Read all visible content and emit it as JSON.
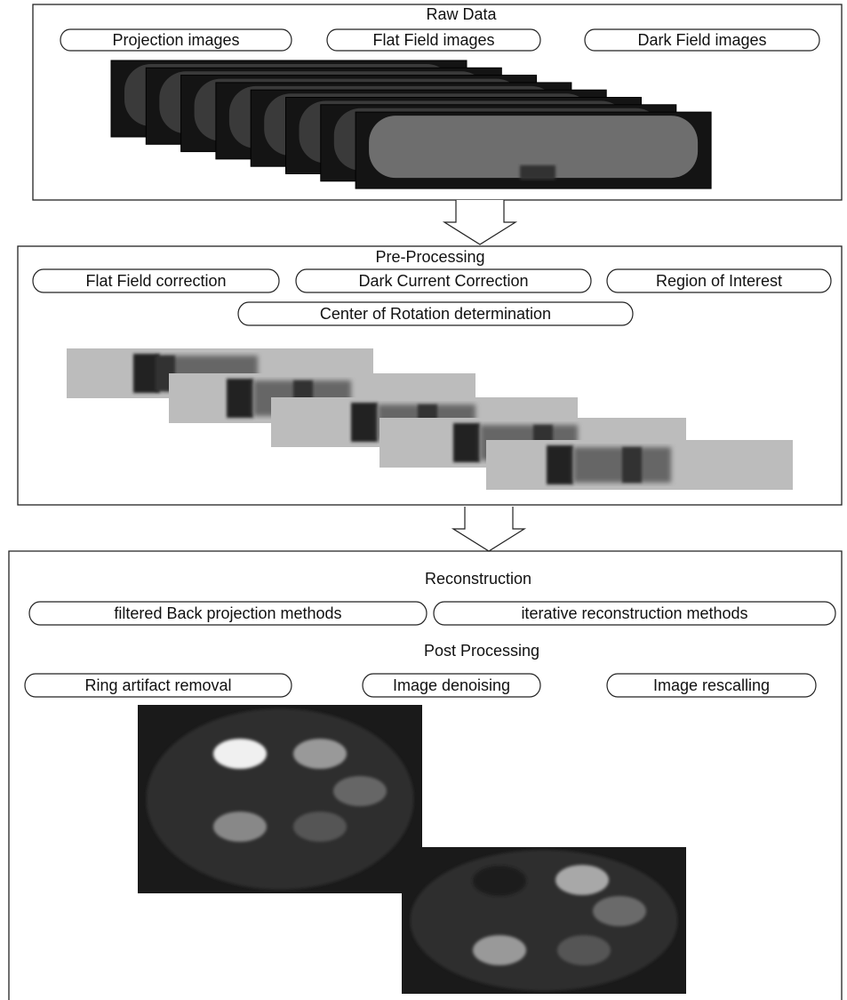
{
  "sections": [
    {
      "title": "Raw Data",
      "items": [
        "Projection images",
        "Flat Field images",
        "Dark Field images"
      ]
    },
    {
      "title": "Pre-Processing",
      "items": [
        "Flat Field correction",
        "Dark Current Correction",
        "Region of Interest",
        "Center of Rotation determination"
      ]
    },
    {
      "title": "Reconstruction",
      "items": [
        "filtered Back projection methods",
        "iterative reconstruction methods"
      ],
      "post_processing": {
        "title": "Post Processing",
        "items": [
          "Ring artifact removal",
          "Image denoising",
          "Image rescalling"
        ]
      }
    }
  ]
}
